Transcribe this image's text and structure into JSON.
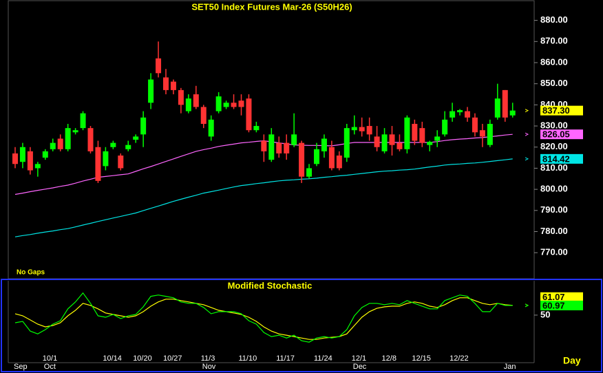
{
  "chart_data": [
    {
      "type": "candlestick",
      "title": "SET50  Index  Futures  Mar-26  (S50H26)",
      "note": "No  Gaps",
      "categories": [
        null,
        null,
        null,
        null,
        "10/1",
        null,
        null,
        null,
        null,
        null,
        null,
        null,
        "10/14",
        null,
        null,
        null,
        "10/20",
        null,
        null,
        null,
        "10/27",
        null,
        null,
        null,
        null,
        "11/3",
        null,
        null,
        null,
        null,
        "11/10",
        null,
        null,
        null,
        null,
        "11/17",
        null,
        null,
        null,
        null,
        "11/24",
        null,
        null,
        null,
        null,
        "12/1",
        null,
        null,
        null,
        "12/8",
        null,
        null,
        null,
        "12/15",
        null,
        null,
        null,
        null,
        "12/22",
        null,
        null,
        null,
        null,
        null,
        null,
        null,
        null
      ],
      "months": [
        "Sep",
        null,
        null,
        null,
        "Oct",
        null,
        null,
        null,
        null,
        null,
        null,
        null,
        null,
        null,
        null,
        null,
        null,
        null,
        null,
        null,
        null,
        null,
        null,
        null,
        null,
        "Nov",
        null,
        null,
        null,
        null,
        null,
        null,
        null,
        null,
        null,
        null,
        null,
        null,
        null,
        null,
        null,
        null,
        null,
        null,
        null,
        "Dec",
        null,
        null,
        null,
        null,
        null,
        null,
        null,
        null,
        null,
        null,
        null,
        null,
        null,
        null,
        null,
        null,
        null,
        null,
        null,
        "Jan",
        null
      ],
      "open": [
        817,
        813,
        818,
        810,
        815,
        819,
        824,
        819,
        827,
        829,
        829,
        820,
        811,
        820,
        816,
        819,
        823.5,
        826,
        841,
        862,
        853,
        851,
        847,
        837,
        845,
        839,
        825,
        837,
        839,
        841,
        842,
        843,
        828,
        823,
        814,
        822,
        822,
        821,
        822,
        806,
        812,
        818,
        820,
        816,
        815,
        828,
        829.5,
        830,
        825,
        818,
        826,
        822,
        819,
        831,
        829,
        821,
        823,
        826,
        834,
        836.5,
        837,
        834,
        828,
        821,
        834,
        847,
        835
      ],
      "high": [
        820,
        822,
        820,
        813,
        819,
        824,
        826,
        831,
        829,
        837,
        830,
        823,
        820,
        823,
        817,
        823,
        826,
        837,
        855,
        870,
        857,
        852,
        848,
        845,
        849,
        840,
        835,
        846,
        842,
        845,
        845,
        845,
        832,
        826,
        829,
        825,
        826,
        836,
        823,
        812,
        822,
        826,
        823,
        818,
        831,
        835,
        834,
        834,
        830,
        829,
        830,
        826,
        835,
        833,
        832,
        823,
        828,
        837,
        841,
        838,
        839,
        836,
        831,
        833,
        850,
        847,
        841
      ],
      "low": [
        810,
        810,
        807,
        806,
        814,
        818,
        818,
        818,
        826,
        828,
        817,
        803,
        809,
        819,
        809,
        818,
        822,
        820,
        838,
        853,
        845,
        845,
        836,
        836,
        838,
        829,
        823,
        836,
        838,
        838,
        835,
        827,
        827,
        813,
        813,
        815,
        814,
        820,
        803,
        805,
        811,
        815,
        809,
        809,
        813,
        826,
        825,
        823,
        818,
        817,
        816,
        818,
        817,
        821,
        820,
        818,
        820,
        825,
        832,
        835,
        832,
        825,
        820,
        820,
        833,
        832,
        834
      ],
      "close": [
        812,
        820,
        809,
        812,
        818,
        822,
        819,
        829,
        828,
        836,
        818,
        804,
        818,
        822,
        810,
        821,
        825,
        834,
        852,
        855,
        847,
        847,
        840,
        843,
        839,
        831,
        833,
        844,
        841,
        839,
        839,
        828,
        830,
        818,
        826,
        817,
        817,
        826,
        806,
        810,
        819,
        824,
        810,
        810,
        829,
        829.5,
        827.5,
        826,
        820,
        826,
        821,
        819,
        834,
        823,
        822,
        822.5,
        825,
        833,
        837,
        837.5,
        834,
        827,
        825,
        831,
        843,
        834,
        837.3
      ],
      "close_label": "837.30",
      "close_label_color": "#ffff00",
      "up_color": "#00ff00",
      "down_color": "#ff3333",
      "series": [
        {
          "color": "#ff66ff",
          "last_label": "826.05",
          "values": [
            797.6,
            798.2,
            798.9,
            799.5,
            800.1,
            800.7,
            801.4,
            802.0,
            802.9,
            803.9,
            804.8,
            805.7,
            806.1,
            806.5,
            806.9,
            807.3,
            808.5,
            809.7,
            810.8,
            812.0,
            813.2,
            814.4,
            815.6,
            816.8,
            818.0,
            818.8,
            819.5,
            820.3,
            820.9,
            821.4,
            822.0,
            822.3,
            822.7,
            823.0,
            822.5,
            822.0,
            821.5,
            821.0,
            820.9,
            820.8,
            820.8,
            820.7,
            820.6,
            821.1,
            821.7,
            822.2,
            822.2,
            822.2,
            822.2,
            822.2,
            822.2,
            822.2,
            822.2,
            822.2,
            822.2,
            822.2,
            822.6,
            823.1,
            823.5,
            823.8,
            824.0,
            824.3,
            824.5,
            824.9,
            825.3,
            825.7,
            826.05
          ]
        },
        {
          "color": "#00e5e5",
          "last_label": "814.42",
          "values": [
            777.5,
            778.1,
            778.6,
            779.2,
            779.8,
            780.3,
            780.9,
            781.4,
            782.2,
            783.1,
            783.9,
            784.8,
            785.6,
            786.4,
            787.2,
            788.0,
            788.8,
            789.9,
            791.0,
            792.1,
            793.2,
            794.3,
            795.3,
            796.3,
            797.2,
            798.2,
            798.9,
            799.6,
            800.4,
            801.1,
            801.8,
            802.2,
            802.7,
            803.1,
            803.6,
            804.0,
            804.3,
            804.5,
            804.8,
            805.0,
            805.3,
            805.7,
            806.0,
            806.4,
            806.7,
            807.1,
            807.5,
            807.9,
            808.3,
            808.6,
            808.8,
            809.1,
            809.3,
            809.6,
            810.1,
            810.6,
            811.0,
            811.5,
            811.8,
            812.0,
            812.3,
            812.5,
            812.8,
            813.2,
            813.6,
            814.0,
            814.42
          ]
        }
      ],
      "ylim": [
        758,
        889
      ],
      "yticks": [
        {
          "value": 770,
          "label": "770.00"
        },
        {
          "value": 780,
          "label": "780.00"
        },
        {
          "value": 790,
          "label": "790.00"
        },
        {
          "value": 800,
          "label": "800.00"
        },
        {
          "value": 810,
          "label": "810.00"
        },
        {
          "value": 820,
          "label": "820.00"
        },
        {
          "value": 830,
          "label": "830.00"
        },
        {
          "value": 840,
          "label": "840.00"
        },
        {
          "value": 850,
          "label": "850.00"
        },
        {
          "value": 860,
          "label": "860.00"
        },
        {
          "value": 870,
          "label": "870.00"
        },
        {
          "value": 880,
          "label": "880.00"
        }
      ]
    },
    {
      "type": "line",
      "title": "Modified  Stochastic",
      "xlabel": "Day",
      "series": [
        {
          "color": "#ffff00",
          "last_label": "61.07",
          "values": [
            51.6,
            49.2,
            44.5,
            39.8,
            36.6,
            38.2,
            41.3,
            49.2,
            55.5,
            63.4,
            61,
            57.1,
            52.4,
            50.8,
            49.2,
            47.6,
            49.2,
            53.9,
            60.2,
            65,
            68.1,
            68.1,
            66.5,
            65,
            63.4,
            61.8,
            58.7,
            55.5,
            53.9,
            52.4,
            50.8,
            47.6,
            42.9,
            36.6,
            31.9,
            28.7,
            27.2,
            25.6,
            24,
            22.4,
            22.4,
            24,
            24.8,
            25.6,
            28.7,
            38.2,
            47.6,
            53.9,
            57.8,
            59.4,
            60.2,
            60.2,
            63.4,
            65,
            63.4,
            60.2,
            58.7,
            61.8,
            66.5,
            69.7,
            69.7,
            66.5,
            63.4,
            61.8,
            63.4,
            61.8,
            61.07
          ]
        },
        {
          "color": "#00ff00",
          "last_label": "60.97",
          "values": [
            41.3,
            42.9,
            31.9,
            28.7,
            33.5,
            39.8,
            43.7,
            57.1,
            65,
            75.2,
            63.4,
            49.2,
            47.6,
            50.8,
            46.1,
            49.2,
            50.8,
            59.4,
            71.3,
            72.8,
            71.3,
            69.7,
            65,
            63.4,
            63.4,
            58.7,
            51.6,
            53.9,
            53.9,
            53.9,
            51.6,
            43.7,
            39.8,
            30.3,
            25.6,
            27.2,
            24,
            27.2,
            20.9,
            19.3,
            24,
            25.6,
            24,
            25.6,
            33.5,
            49.2,
            58.7,
            63.4,
            63.4,
            61.8,
            63.4,
            61.8,
            66.5,
            63.4,
            60.2,
            57.1,
            57.1,
            66.5,
            69.7,
            72.8,
            71.3,
            63.4,
            53.9,
            53.9,
            63.4,
            61,
            60.97
          ]
        }
      ],
      "ylim": [
        -4,
        89
      ],
      "yticks": [
        50
      ]
    }
  ]
}
